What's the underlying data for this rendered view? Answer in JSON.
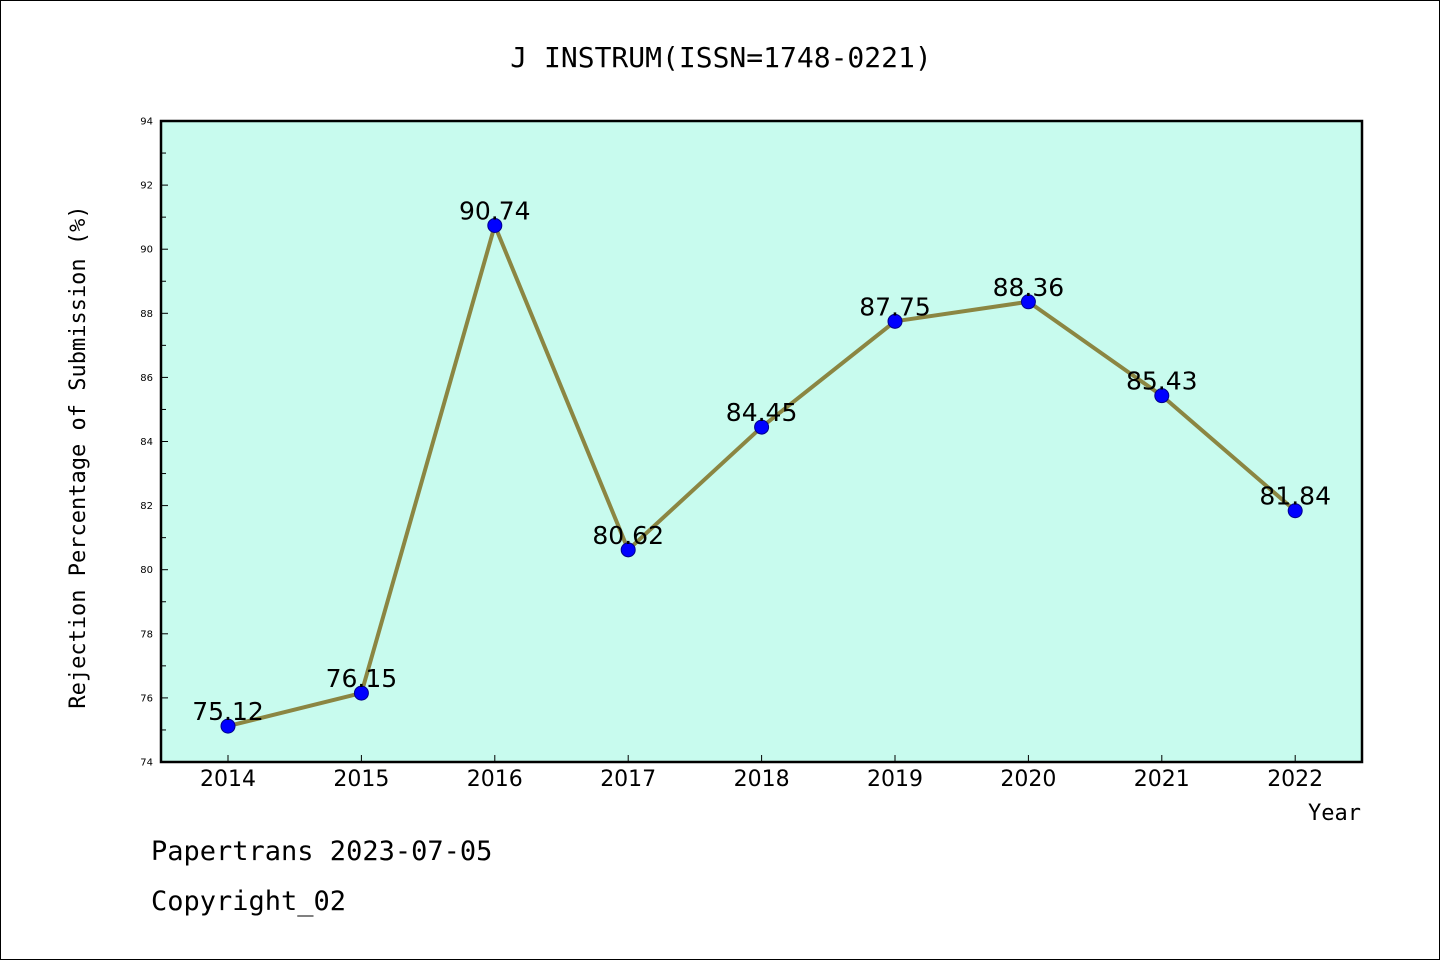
{
  "title": "J INSTRUM(ISSN=1748-0221)",
  "footer": {
    "line1": "Papertrans 2023-07-05",
    "line2": "Copyright_02"
  },
  "colors": {
    "plot_background": "#c8fbee",
    "line": "#8b8642",
    "marker": "#0000ff"
  },
  "chart_data": {
    "type": "line",
    "title": "J INSTRUM(ISSN=1748-0221)",
    "xlabel": "Year",
    "ylabel": "Rejection Percentage of Submission (%)",
    "categories": [
      "2014",
      "2015",
      "2016",
      "2017",
      "2018",
      "2019",
      "2020",
      "2021",
      "2022"
    ],
    "values": [
      75.12,
      76.15,
      90.74,
      80.62,
      84.45,
      87.75,
      88.36,
      85.43,
      81.84
    ],
    "data_labels": [
      "75.12",
      "76.15",
      "90.74",
      "80.62",
      "84.45",
      "87.75",
      "88.36",
      "85.43",
      "81.84"
    ],
    "ylim": [
      74,
      94
    ],
    "yticks": [
      "74",
      "76",
      "78",
      "80",
      "82",
      "84",
      "86",
      "88",
      "90",
      "92",
      "94"
    ],
    "grid": false,
    "legend": "none"
  }
}
